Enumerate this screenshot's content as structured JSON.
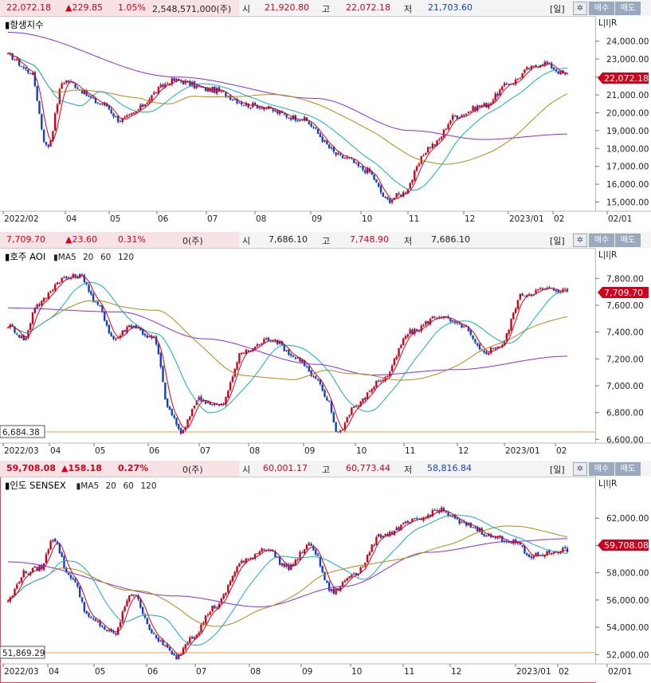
{
  "panels": [
    {
      "id": "hsi",
      "header": {
        "price": "22,072.18",
        "change": "▲229.85",
        "pct": "1.05%",
        "volume": "2,548,571,000(주)",
        "open_label": "시",
        "open": "21,920.80",
        "high_label": "고",
        "high": "22,072.18",
        "low_label": "저",
        "low": "21,703.60",
        "period": "[일]",
        "buy": "매수",
        "sell": "매도"
      },
      "title": "항생지수",
      "ma_legend": [],
      "lir": "L|I|R",
      "current_tag": "22,072.18",
      "left_tag": "",
      "yticks": [
        "24,000.00",
        "23,000.00",
        "22,000.00",
        "21,000.00",
        "20,000.00",
        "19,000.00",
        "18,000.00",
        "17,000.00",
        "16,000.00",
        "15,000.00"
      ],
      "xticks": [
        "2022/02",
        "04",
        "05",
        "06",
        "07",
        "08",
        "09",
        "10",
        "11",
        "12",
        "2023/01",
        "02",
        "02/01"
      ]
    },
    {
      "id": "aoi",
      "header": {
        "price": "7,709.70",
        "change": "▲23.60",
        "pct": "0.31%",
        "volume": "0(주)",
        "open_label": "시",
        "open": "7,686.10",
        "high_label": "고",
        "high": "7,748.90",
        "low_label": "저",
        "low": "7,686.10",
        "period": "[일]",
        "buy": "매수",
        "sell": "매도"
      },
      "title": "호주 AOI",
      "ma_legend": [
        {
          "label": "MA",
          "color": "#d0021b"
        },
        {
          "label": "5",
          "color": "#d0021b"
        },
        {
          "label": "20",
          "color": "#1aa7c8"
        },
        {
          "label": "60",
          "color": "#b08a10"
        },
        {
          "label": "120",
          "color": "#8a2be2"
        }
      ],
      "lir": "L|I|R",
      "current_tag": "7,709.70",
      "left_tag": "6,684.38",
      "yticks": [
        "7,800.00",
        "7,600.00",
        "7,400.00",
        "7,200.00",
        "7,000.00",
        "6,800.00",
        "6,600.00"
      ],
      "xticks": [
        "2022/03",
        "04",
        "05",
        "06",
        "07",
        "08",
        "09",
        "10",
        "11",
        "12",
        "2023/01",
        "02"
      ]
    },
    {
      "id": "sensex",
      "header": {
        "price": "59,708.08",
        "change": "▲158.18",
        "pct": "0.27%",
        "volume": "0(주)",
        "open_label": "시",
        "open": "60,001.17",
        "high_label": "고",
        "high": "60,773.44",
        "low_label": "저",
        "low": "58,816.84",
        "period": "[일]",
        "buy": "매수",
        "sell": "매도"
      },
      "title": "인도 SENSEX",
      "ma_legend": [
        {
          "label": "MA",
          "color": "#d0021b"
        },
        {
          "label": "5",
          "color": "#d0021b"
        },
        {
          "label": "20",
          "color": "#1aa7c8"
        },
        {
          "label": "60",
          "color": "#b08a10"
        },
        {
          "label": "120",
          "color": "#8a2be2"
        }
      ],
      "lir": "L|I|R",
      "current_tag": "59,708.08",
      "left_tag": "51,869.29",
      "yticks": [
        "62,000.00",
        "60,000.00",
        "58,000.00",
        "56,000.00",
        "54,000.00",
        "52,000.00"
      ],
      "xticks": [
        "2022/03",
        "04",
        "05",
        "06",
        "07",
        "08",
        "09",
        "10",
        "11",
        "12",
        "2023/01",
        "02",
        "02/01"
      ]
    }
  ],
  "colors": {
    "up": "#d0021b",
    "down": "#1040c0",
    "ma5": "#d0021b",
    "ma20": "#1aa7c8",
    "ma60": "#b08a10",
    "ma120": "#8a2be2"
  }
}
